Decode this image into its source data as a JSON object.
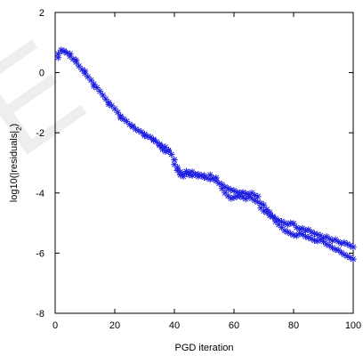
{
  "chart_data": {
    "type": "scatter",
    "title": "",
    "xlabel": "PGD iteration",
    "ylabel_main": "log10(|residuals|",
    "ylabel_sub": "2",
    "ylabel_close": ")",
    "xlim": [
      0,
      100
    ],
    "ylim": [
      -8,
      2
    ],
    "xticks": [
      0,
      20,
      40,
      60,
      80,
      100
    ],
    "yticks": [
      2,
      0,
      -2,
      -4,
      -6,
      -8
    ],
    "marker": "asterisk",
    "series_color": "#1f1fe0",
    "grid": false,
    "legend": "none",
    "series": [
      {
        "points": [
          [
            1,
            0.5
          ],
          [
            2,
            0.75
          ],
          [
            3,
            0.72
          ],
          [
            4,
            0.65
          ],
          [
            5,
            0.55
          ],
          [
            6,
            0.45
          ],
          [
            7,
            0.35
          ],
          [
            8,
            0.22
          ],
          [
            9,
            0.1
          ],
          [
            10,
            -0.02
          ],
          [
            11,
            -0.14
          ],
          [
            12,
            -0.25
          ],
          [
            13,
            -0.38
          ],
          [
            14,
            -0.5
          ],
          [
            15,
            -0.62
          ],
          [
            16,
            -0.75
          ],
          [
            17,
            -0.88
          ],
          [
            18,
            -1.0
          ],
          [
            19,
            -1.1
          ],
          [
            20,
            -1.2
          ],
          [
            21,
            -1.32
          ],
          [
            22,
            -1.45
          ],
          [
            23,
            -1.55
          ],
          [
            24,
            -1.62
          ],
          [
            25,
            -1.72
          ],
          [
            26,
            -1.8
          ],
          [
            27,
            -1.88
          ],
          [
            28,
            -1.93
          ],
          [
            29,
            -1.98
          ],
          [
            30,
            -2.05
          ],
          [
            31,
            -2.12
          ],
          [
            32,
            -2.15
          ],
          [
            33,
            -2.22
          ],
          [
            34,
            -2.3
          ],
          [
            35,
            -2.38
          ],
          [
            36,
            -2.45
          ],
          [
            37,
            -2.48
          ],
          [
            38,
            -2.6
          ],
          [
            39,
            -2.72
          ],
          [
            40,
            -2.9
          ],
          [
            41,
            -3.15
          ],
          [
            42,
            -3.3
          ],
          [
            43,
            -3.38
          ],
          [
            44,
            -3.35
          ],
          [
            45,
            -3.4
          ],
          [
            46,
            -3.42
          ],
          [
            47,
            -3.38
          ],
          [
            48,
            -3.45
          ],
          [
            49,
            -3.42
          ],
          [
            50,
            -3.48
          ],
          [
            51,
            -3.5
          ],
          [
            52,
            -3.55
          ],
          [
            53,
            -3.52
          ],
          [
            54,
            -3.6
          ],
          [
            55,
            -3.68
          ],
          [
            56,
            -3.72
          ],
          [
            57,
            -3.8
          ],
          [
            58,
            -3.85
          ],
          [
            59,
            -3.9
          ],
          [
            60,
            -3.92
          ],
          [
            61,
            -3.98
          ],
          [
            62,
            -4.0
          ],
          [
            63,
            -3.98
          ],
          [
            64,
            -4.02
          ],
          [
            65,
            -4.05
          ],
          [
            66,
            -4.0
          ],
          [
            67,
            -4.08
          ],
          [
            68,
            -4.3
          ],
          [
            69,
            -4.5
          ],
          [
            70,
            -4.6
          ],
          [
            71,
            -4.65
          ],
          [
            72,
            -4.75
          ],
          [
            73,
            -4.78
          ],
          [
            74,
            -4.85
          ],
          [
            75,
            -4.92
          ],
          [
            76,
            -4.95
          ],
          [
            77,
            -5.0
          ],
          [
            78,
            -5.05
          ],
          [
            79,
            -5.0
          ],
          [
            80,
            -5.02
          ],
          [
            81,
            -5.15
          ],
          [
            82,
            -5.2
          ],
          [
            83,
            -5.18
          ],
          [
            84,
            -5.25
          ],
          [
            85,
            -5.22
          ],
          [
            86,
            -5.3
          ],
          [
            87,
            -5.35
          ],
          [
            88,
            -5.38
          ],
          [
            89,
            -5.42
          ],
          [
            90,
            -5.5
          ],
          [
            91,
            -5.45
          ],
          [
            92,
            -5.52
          ],
          [
            93,
            -5.58
          ],
          [
            94,
            -5.55
          ],
          [
            95,
            -5.62
          ],
          [
            96,
            -5.68
          ],
          [
            97,
            -5.65
          ],
          [
            98,
            -5.7
          ],
          [
            99,
            -5.75
          ],
          [
            100,
            -5.8
          ],
          [
            1,
            0.62
          ],
          [
            3,
            0.7
          ],
          [
            5,
            0.62
          ],
          [
            7,
            0.42
          ],
          [
            10,
            0.05
          ],
          [
            13,
            -0.45
          ],
          [
            18,
            -1.05
          ],
          [
            22,
            -1.5
          ],
          [
            26,
            -1.78
          ],
          [
            30,
            -2.1
          ],
          [
            33,
            -2.25
          ],
          [
            35,
            -2.42
          ],
          [
            36,
            -2.55
          ],
          [
            37,
            -2.62
          ],
          [
            38,
            -2.58
          ],
          [
            40,
            -3.05
          ],
          [
            41,
            -3.25
          ],
          [
            42,
            -3.4
          ],
          [
            43,
            -3.45
          ],
          [
            44,
            -3.28
          ],
          [
            45,
            -3.32
          ],
          [
            46,
            -3.3
          ],
          [
            48,
            -3.38
          ],
          [
            50,
            -3.42
          ],
          [
            52,
            -3.4
          ],
          [
            54,
            -3.5
          ],
          [
            56,
            -3.85
          ],
          [
            57,
            -4.0
          ],
          [
            58,
            -4.1
          ],
          [
            59,
            -4.18
          ],
          [
            60,
            -4.15
          ],
          [
            61,
            -4.12
          ],
          [
            62,
            -4.1
          ],
          [
            63,
            -4.15
          ],
          [
            64,
            -4.2
          ],
          [
            65,
            -4.12
          ],
          [
            66,
            -4.18
          ],
          [
            67,
            -4.25
          ],
          [
            68,
            -4.12
          ],
          [
            69,
            -4.35
          ],
          [
            70,
            -4.4
          ],
          [
            71,
            -4.55
          ],
          [
            72,
            -4.65
          ],
          [
            73,
            -4.8
          ],
          [
            74,
            -4.95
          ],
          [
            75,
            -5.05
          ],
          [
            76,
            -5.15
          ],
          [
            77,
            -5.25
          ],
          [
            78,
            -5.3
          ],
          [
            79,
            -5.35
          ],
          [
            80,
            -5.4
          ],
          [
            81,
            -5.42
          ],
          [
            82,
            -5.35
          ],
          [
            83,
            -5.38
          ],
          [
            84,
            -5.45
          ],
          [
            85,
            -5.48
          ],
          [
            86,
            -5.52
          ],
          [
            87,
            -5.58
          ],
          [
            88,
            -5.6
          ],
          [
            89,
            -5.55
          ],
          [
            90,
            -5.62
          ],
          [
            91,
            -5.7
          ],
          [
            92,
            -5.75
          ],
          [
            93,
            -5.82
          ],
          [
            94,
            -5.88
          ],
          [
            95,
            -5.9
          ],
          [
            96,
            -5.98
          ],
          [
            97,
            -6.05
          ],
          [
            98,
            -6.1
          ],
          [
            99,
            -6.15
          ],
          [
            100,
            -6.2
          ]
        ]
      }
    ]
  }
}
